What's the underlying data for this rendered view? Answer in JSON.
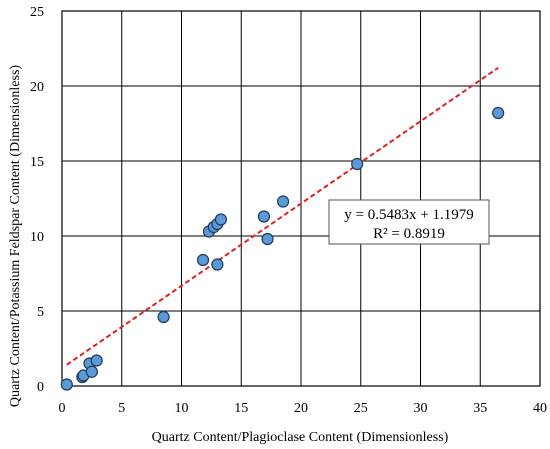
{
  "chart_data": {
    "type": "scatter",
    "title": "",
    "xlabel": "Quartz Content/Plagioclase Content (Dimensionless)",
    "ylabel": "Quartz Content/Potassium Feldspar Content (Dimensionless)",
    "xlim": [
      0,
      40
    ],
    "ylim": [
      0,
      25
    ],
    "x_ticks": [
      0,
      5,
      10,
      15,
      20,
      25,
      30,
      35,
      40
    ],
    "y_ticks": [
      0,
      5,
      10,
      15,
      20,
      25
    ],
    "grid": true,
    "legend": "none",
    "series": [
      {
        "marker_color": "#5b9bd5",
        "marker_edge": "#1f3a5f",
        "points": [
          {
            "x": 0.4,
            "y": 0.1
          },
          {
            "x": 1.7,
            "y": 0.6
          },
          {
            "x": 1.8,
            "y": 0.7
          },
          {
            "x": 2.3,
            "y": 1.5
          },
          {
            "x": 2.5,
            "y": 0.95
          },
          {
            "x": 2.9,
            "y": 1.7
          },
          {
            "x": 8.5,
            "y": 4.6
          },
          {
            "x": 11.8,
            "y": 8.4
          },
          {
            "x": 12.3,
            "y": 10.3
          },
          {
            "x": 12.7,
            "y": 10.6
          },
          {
            "x": 13.0,
            "y": 10.8
          },
          {
            "x": 13.0,
            "y": 8.1
          },
          {
            "x": 13.3,
            "y": 11.1
          },
          {
            "x": 16.9,
            "y": 11.3
          },
          {
            "x": 17.2,
            "y": 9.8
          },
          {
            "x": 18.5,
            "y": 12.3
          },
          {
            "x": 24.7,
            "y": 14.8
          },
          {
            "x": 36.5,
            "y": 18.2
          }
        ]
      }
    ],
    "trendline": {
      "slope": 0.5483,
      "intercept": 1.1979,
      "x_range": [
        0.4,
        36.5
      ],
      "color": "#e02020",
      "style": "dashed"
    },
    "annotations": {
      "equation": "y = 0.5483x + 1.1979",
      "r_squared": "R² = 0.8919"
    }
  }
}
